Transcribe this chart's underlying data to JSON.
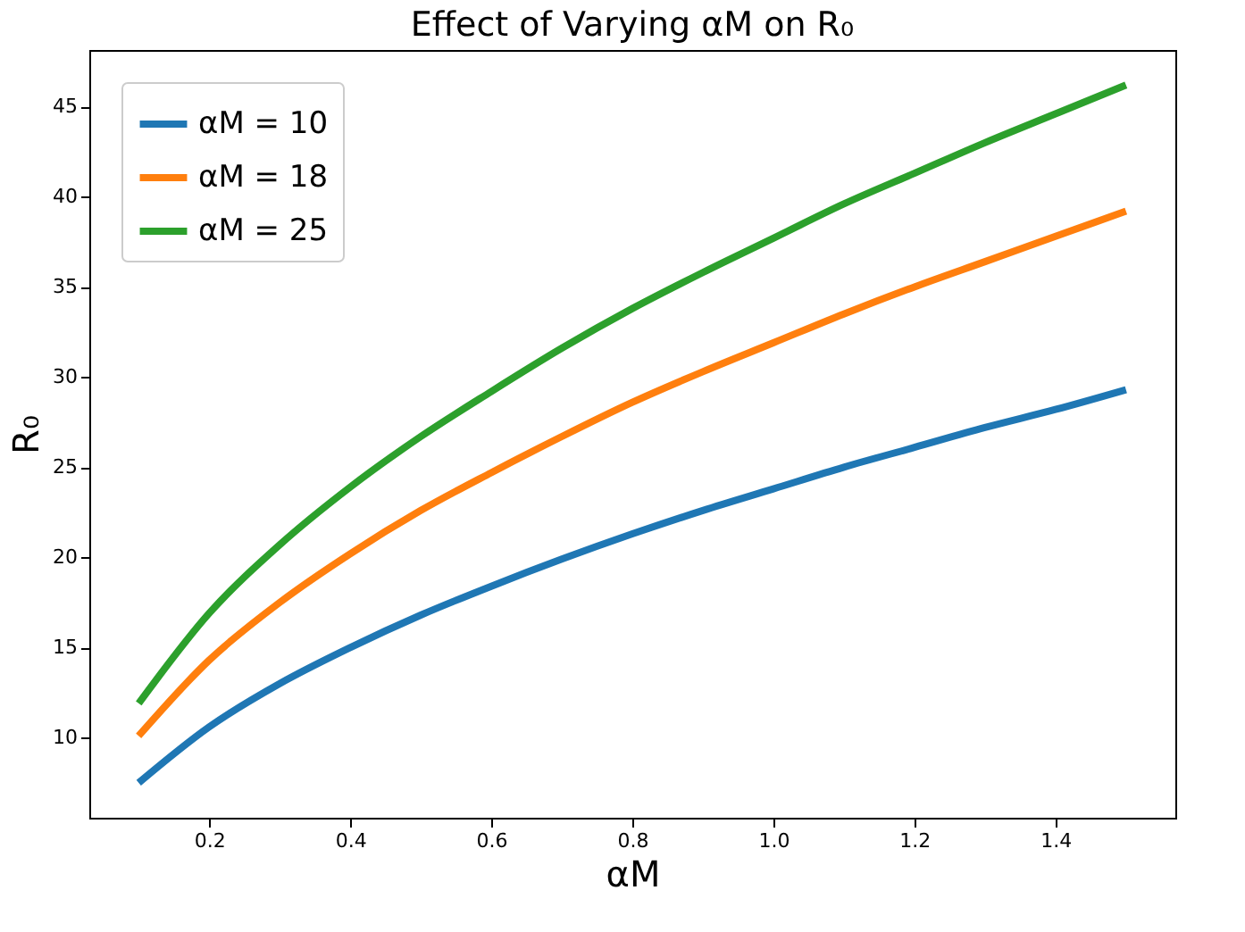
{
  "chart_data": {
    "type": "line",
    "title": "Effect of Varying αM on R₀",
    "xlabel": "αM",
    "ylabel": "R₀",
    "x": [
      0.1,
      0.2,
      0.3,
      0.4,
      0.5,
      0.6,
      0.7,
      0.8,
      0.9,
      1.0,
      1.1,
      1.2,
      1.3,
      1.4,
      1.5
    ],
    "series": [
      {
        "name": "αM = 10",
        "color": "#1f77b4",
        "values": [
          7.5,
          10.6,
          13.0,
          15.0,
          16.8,
          18.4,
          19.9,
          21.3,
          22.6,
          23.8,
          25.0,
          26.1,
          27.2,
          28.2,
          29.3
        ]
      },
      {
        "name": "αM = 18",
        "color": "#ff7f0e",
        "values": [
          10.1,
          14.3,
          17.5,
          20.2,
          22.6,
          24.7,
          26.7,
          28.6,
          30.3,
          31.9,
          33.5,
          35.0,
          36.4,
          37.8,
          39.2
        ]
      },
      {
        "name": "αM = 25",
        "color": "#2ca02c",
        "values": [
          11.9,
          16.9,
          20.7,
          23.9,
          26.7,
          29.2,
          31.6,
          33.8,
          35.8,
          37.7,
          39.6,
          41.3,
          43.0,
          44.6,
          46.2
        ]
      }
    ],
    "xlim": [
      0.03,
      1.57
    ],
    "ylim": [
      5.56,
      48.14
    ],
    "xticks": [
      {
        "value": 0.2,
        "label": "0.2"
      },
      {
        "value": 0.4,
        "label": "0.4"
      },
      {
        "value": 0.6,
        "label": "0.6"
      },
      {
        "value": 0.8,
        "label": "0.8"
      },
      {
        "value": 1.0,
        "label": "1.0"
      },
      {
        "value": 1.2,
        "label": "1.2"
      },
      {
        "value": 1.4,
        "label": "1.4"
      }
    ],
    "yticks": [
      10,
      15,
      20,
      25,
      30,
      35,
      40,
      45
    ],
    "grid": false,
    "legend": "top left",
    "marker": "none",
    "line_style": "solid"
  }
}
